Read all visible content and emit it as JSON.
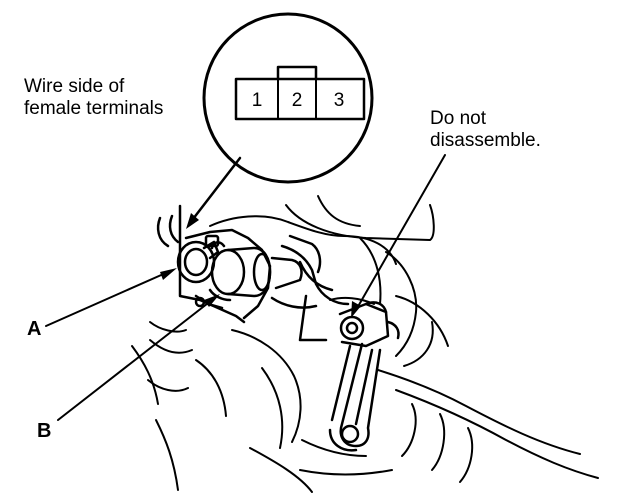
{
  "callouts": {
    "wire_side_line1": "Wire side of",
    "wire_side_line2": "female terminals",
    "do_not_line1": "Do not",
    "do_not_line2": "disassemble."
  },
  "labels": {
    "a": "A",
    "b": "B"
  },
  "connector": {
    "terminals": [
      "1",
      "2",
      "3"
    ]
  },
  "colors": {
    "ink": "#000000",
    "paper": "#ffffff"
  }
}
